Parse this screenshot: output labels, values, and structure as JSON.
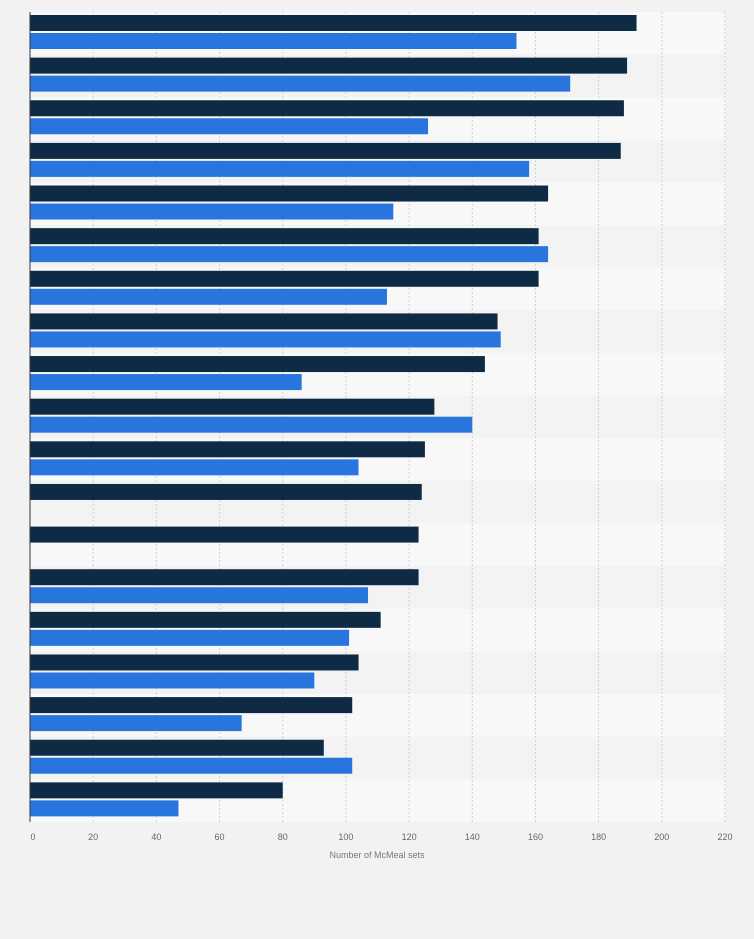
{
  "chart_data": {
    "type": "bar",
    "orientation": "horizontal",
    "title": "",
    "xlabel": "Number of McMeal sets",
    "ylabel": "",
    "xlim": [
      0,
      220
    ],
    "xticks": [
      "0",
      "20",
      "40",
      "60",
      "80",
      "100",
      "120",
      "140",
      "160",
      "180",
      "200",
      "220"
    ],
    "grid": true,
    "legend": "none",
    "categories": [
      "",
      "",
      "",
      "",
      "",
      "",
      "",
      "",
      "",
      "",
      "",
      "",
      "",
      "",
      "",
      "",
      "",
      "",
      ""
    ],
    "series": [
      {
        "color": "#0f2a44",
        "values": [
          192,
          189,
          188,
          187,
          164,
          161,
          161,
          148,
          144,
          128,
          125,
          124,
          123,
          123,
          111,
          104,
          102,
          93,
          80
        ]
      },
      {
        "color": "#2876dd",
        "values": [
          154,
          171,
          126,
          158,
          115,
          164,
          113,
          149,
          86,
          140,
          104,
          null,
          null,
          107,
          101,
          90,
          67,
          102,
          47
        ]
      }
    ]
  }
}
